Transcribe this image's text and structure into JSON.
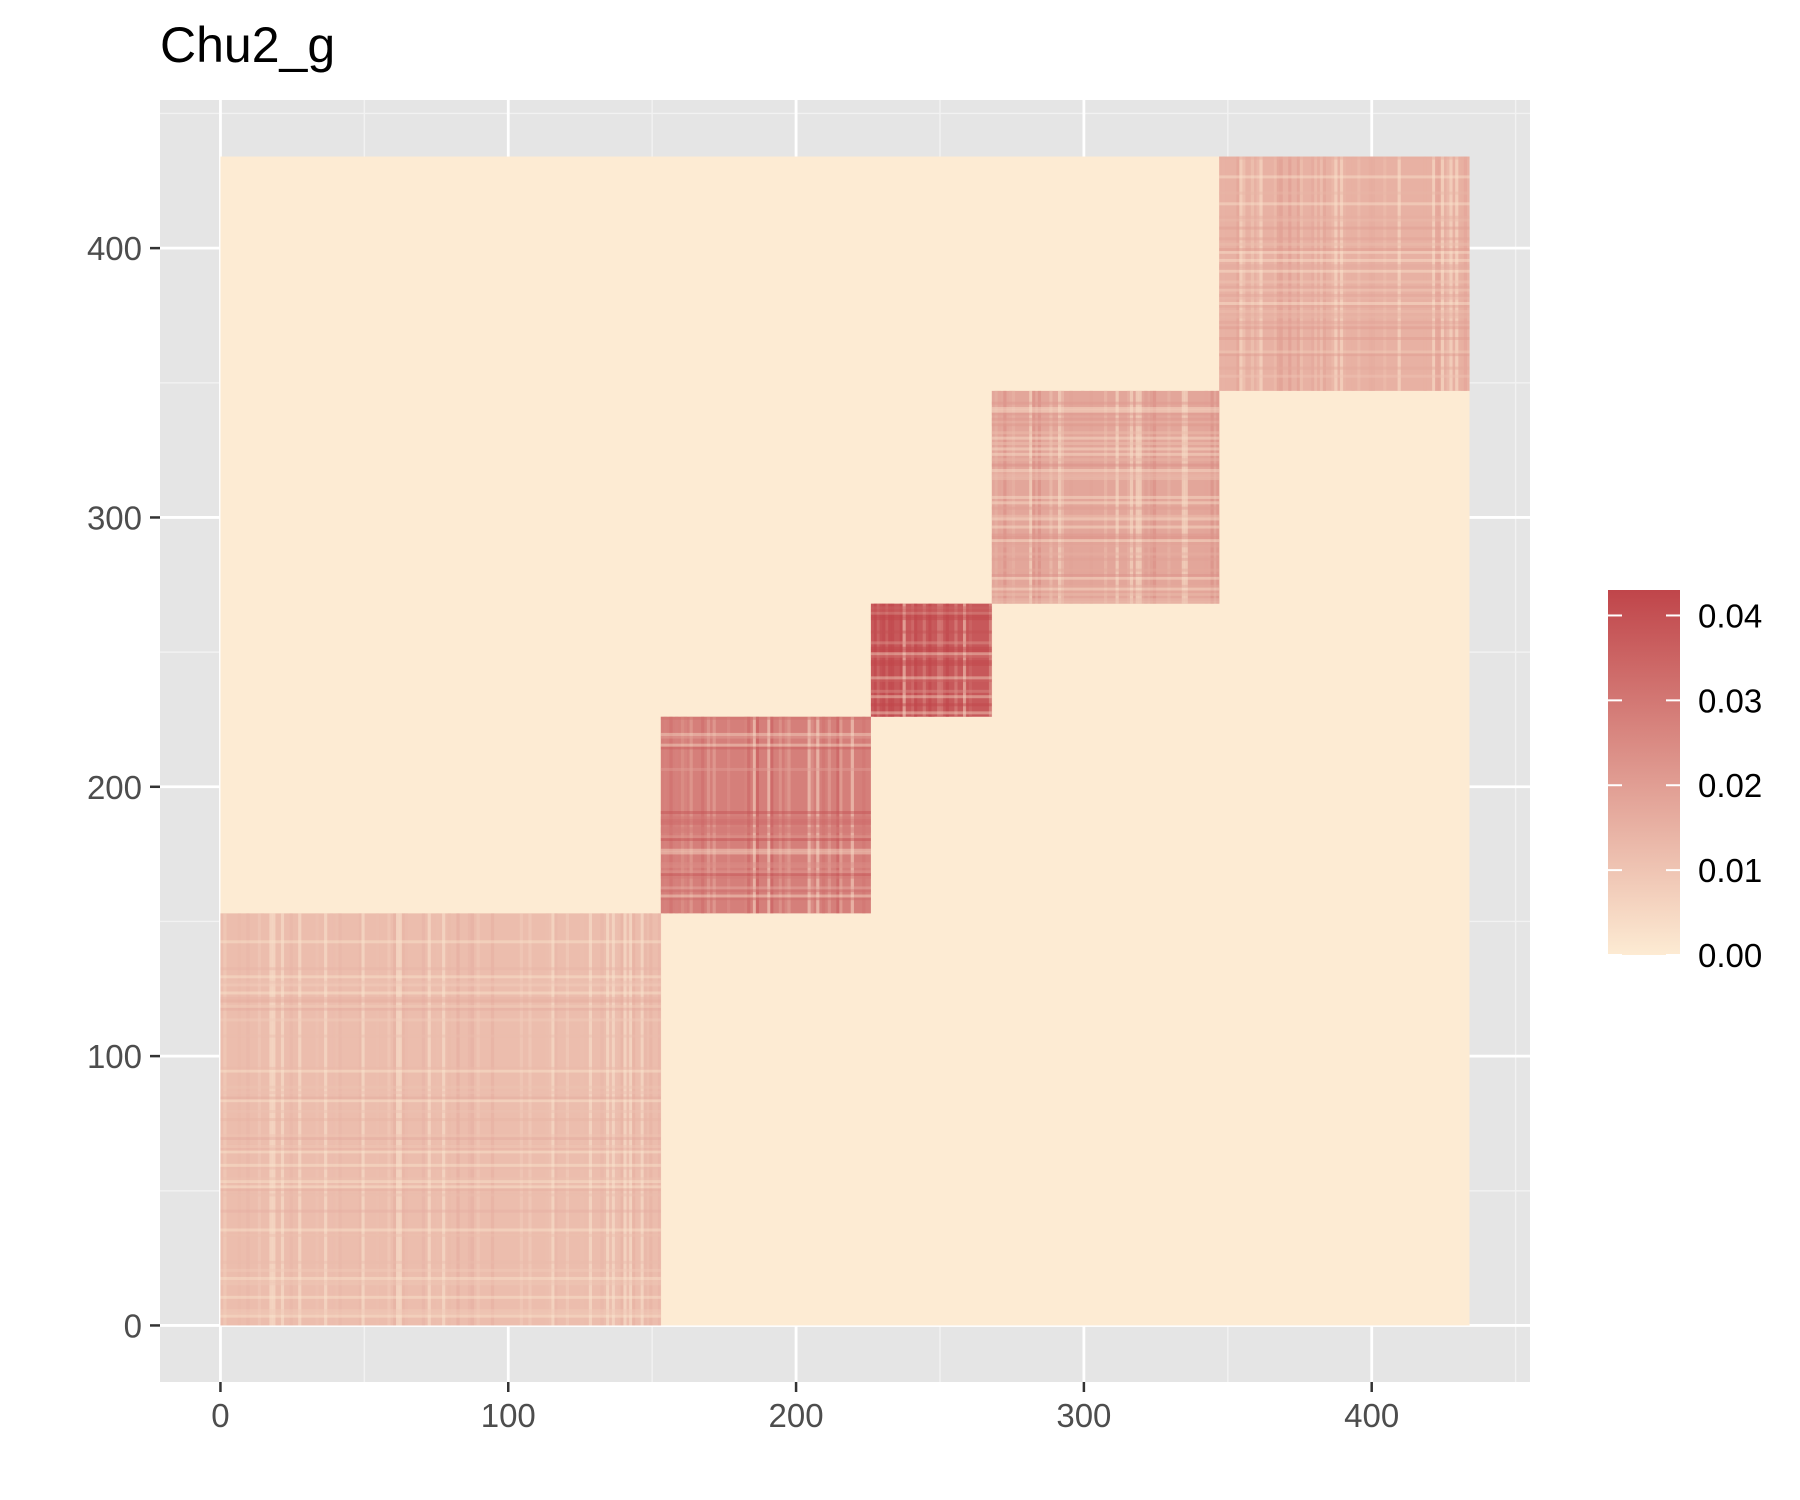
{
  "chart_data": {
    "type": "heatmap",
    "title": "Chu2_g",
    "xlabel": "",
    "ylabel": "",
    "xlim": [
      -21,
      455
    ],
    "ylim": [
      -21,
      455
    ],
    "x_ticks": [
      0,
      100,
      200,
      300,
      400
    ],
    "y_ticks": [
      0,
      100,
      200,
      300,
      400
    ],
    "x_tick_labels": [
      "0",
      "100",
      "200",
      "300",
      "400"
    ],
    "y_tick_labels": [
      "0",
      "100",
      "200",
      "300",
      "400"
    ],
    "grid": true,
    "matrix_extent": [
      0,
      434
    ],
    "background_value": 0.0,
    "blocks": [
      {
        "start": 0,
        "end": 153,
        "mean_value": 0.012
      },
      {
        "start": 153,
        "end": 226,
        "mean_value": 0.028
      },
      {
        "start": 226,
        "end": 268,
        "mean_value": 0.038
      },
      {
        "start": 268,
        "end": 347,
        "mean_value": 0.018
      },
      {
        "start": 347,
        "end": 434,
        "mean_value": 0.015
      }
    ],
    "legend": {
      "position": "right",
      "min": 0.0,
      "max": 0.043,
      "ticks": [
        0.0,
        0.01,
        0.02,
        0.03,
        0.04
      ],
      "tick_labels": [
        "0.00",
        "0.01",
        "0.02",
        "0.03",
        "0.04"
      ],
      "color_low": "#fdebd3",
      "color_high": "#c0454a"
    },
    "colors": {
      "panel_background": "#e5e5e5",
      "grid_major": "#ffffff",
      "grid_minor": "#f2f2f2",
      "tick_color": "#333333"
    }
  }
}
